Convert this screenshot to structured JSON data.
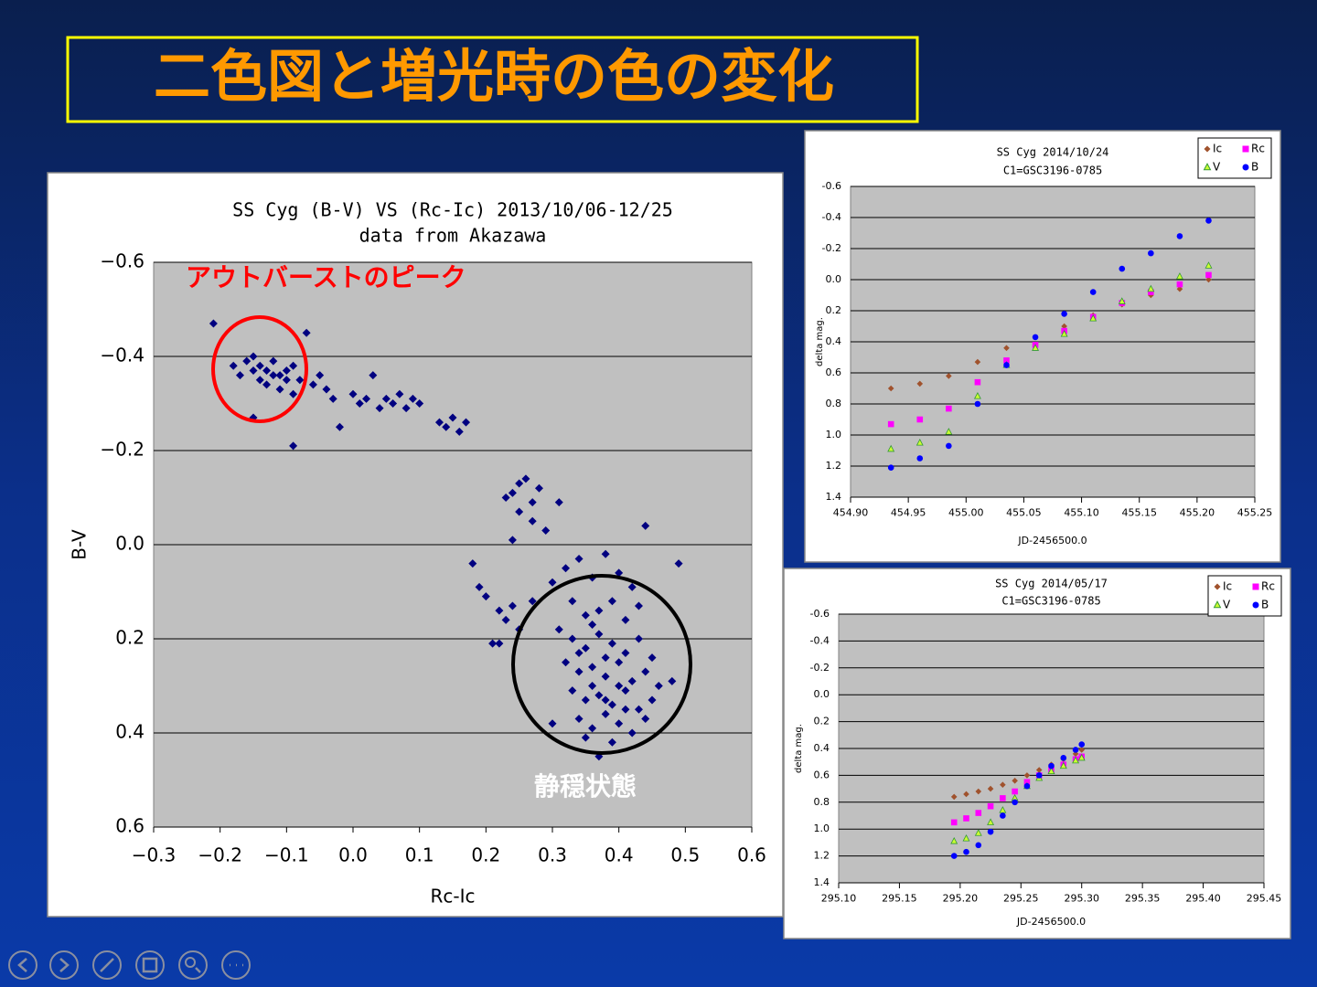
{
  "title": "二色図と増光時の色の変化",
  "chart_data": [
    {
      "type": "scatter",
      "title": "SS Cyg (B-V) VS (Rc-Ic) 2013/10/06-12/25",
      "subtitle": "data from Akazawa",
      "x_label": "Rc-Ic",
      "y_label": "B-V",
      "color": "#000080",
      "marker": "diamond",
      "plot_bg": "#c0c0c0",
      "grid": true,
      "y_reversed": true,
      "xlim": [
        -0.3,
        0.6
      ],
      "xticks": [
        {
          "value": -0.3,
          "label": "−0.3"
        },
        {
          "value": -0.2,
          "label": "−0.2"
        },
        {
          "value": -0.1,
          "label": "−0.1"
        },
        {
          "value": 0,
          "label": "0.0"
        },
        0.1,
        0.2,
        0.3,
        0.4,
        0.5,
        0.6
      ],
      "ylim": [
        -0.6,
        0.6
      ],
      "yticks": [
        {
          "value": -0.6,
          "label": "−0.6"
        },
        {
          "value": -0.4,
          "label": "−0.4"
        },
        {
          "value": -0.2,
          "label": "−0.2"
        },
        {
          "value": 0,
          "label": "0.0"
        },
        0.2,
        0.4,
        0.6
      ],
      "annotations": [
        {
          "text": "アウトバーストのピーク",
          "color": "#ff0000"
        },
        {
          "text": "静穏状態",
          "color": "#ffffff"
        }
      ],
      "x": [
        -0.21,
        -0.18,
        -0.17,
        -0.16,
        -0.15,
        -0.15,
        -0.14,
        -0.14,
        -0.13,
        -0.13,
        -0.12,
        -0.12,
        -0.11,
        -0.11,
        -0.1,
        -0.1,
        -0.09,
        -0.09,
        -0.15,
        -0.09,
        -0.08,
        -0.07,
        -0.06,
        -0.05,
        -0.04,
        -0.03,
        -0.02,
        0,
        0.01,
        0.02,
        0.03,
        0.04,
        0.05,
        0.06,
        0.07,
        0.08,
        0.09,
        0.1,
        0.13,
        0.14,
        0.15,
        0.16,
        0.17,
        0.24,
        0.25,
        0.26,
        0.27,
        0.28,
        0.25,
        0.27,
        0.29,
        0.23,
        0.31,
        0.24,
        0.18,
        0.19,
        0.2,
        0.22,
        0.23,
        0.24,
        0.21,
        0.22,
        0.25,
        0.27,
        0.3,
        0.32,
        0.34,
        0.36,
        0.38,
        0.4,
        0.42,
        0.44,
        0.49,
        0.33,
        0.35,
        0.37,
        0.39,
        0.41,
        0.43,
        0.31,
        0.33,
        0.35,
        0.37,
        0.39,
        0.41,
        0.43,
        0.45,
        0.32,
        0.34,
        0.36,
        0.38,
        0.4,
        0.42,
        0.44,
        0.46,
        0.48,
        0.33,
        0.35,
        0.37,
        0.39,
        0.41,
        0.43,
        0.45,
        0.34,
        0.36,
        0.38,
        0.4,
        0.42,
        0.44,
        0.3,
        0.37,
        0.39,
        0.35,
        0.41,
        0.36,
        0.38,
        0.4,
        0.34,
        0.36,
        0.38
      ],
      "values": [
        -0.47,
        -0.38,
        -0.36,
        -0.39,
        -0.4,
        -0.37,
        -0.38,
        -0.35,
        -0.37,
        -0.34,
        -0.36,
        -0.39,
        -0.36,
        -0.33,
        -0.37,
        -0.35,
        -0.38,
        -0.32,
        -0.27,
        -0.21,
        -0.35,
        -0.45,
        -0.34,
        -0.36,
        -0.33,
        -0.31,
        -0.25,
        -0.32,
        -0.3,
        -0.31,
        -0.36,
        -0.29,
        -0.31,
        -0.3,
        -0.32,
        -0.29,
        -0.31,
        -0.3,
        -0.26,
        -0.25,
        -0.27,
        -0.24,
        -0.26,
        -0.11,
        -0.13,
        -0.14,
        -0.09,
        -0.12,
        -0.07,
        -0.05,
        -0.03,
        -0.1,
        -0.09,
        -0.01,
        0.04,
        0.09,
        0.11,
        0.14,
        0.16,
        0.13,
        0.21,
        0.21,
        0.18,
        0.12,
        0.08,
        0.05,
        0.03,
        0.07,
        0.02,
        0.06,
        0.09,
        -0.04,
        0.04,
        0.12,
        0.15,
        0.14,
        0.12,
        0.16,
        0.13,
        0.18,
        0.2,
        0.22,
        0.19,
        0.21,
        0.23,
        0.2,
        0.24,
        0.25,
        0.27,
        0.26,
        0.28,
        0.25,
        0.29,
        0.27,
        0.3,
        0.29,
        0.31,
        0.33,
        0.32,
        0.34,
        0.31,
        0.35,
        0.33,
        0.37,
        0.39,
        0.36,
        0.38,
        0.4,
        0.37,
        0.38,
        0.45,
        0.42,
        0.41,
        0.35,
        0.3,
        0.24,
        0.3,
        0.23,
        0.17,
        0.33
      ]
    },
    {
      "type": "scatter",
      "title": "SS Cyg 2014/10/24",
      "subtitle": "C1=GSC3196-0785",
      "x_label": "JD-2456500.0",
      "y_label": "delta mag.",
      "plot_bg": "#c0c0c0",
      "grid": true,
      "y_reversed": true,
      "legend": "upper right",
      "xlim": [
        454.9,
        455.25
      ],
      "xticks": [
        {
          "value": 454.9,
          "label": "454.90"
        },
        454.95,
        {
          "value": 455,
          "label": "455.00"
        },
        455.05,
        {
          "value": 455.1,
          "label": "455.10"
        },
        455.15,
        {
          "value": 455.2,
          "label": "455.20"
        },
        455.25
      ],
      "ylim": [
        -0.6,
        1.4
      ],
      "yticks": [
        -0.6,
        -0.4,
        -0.2,
        {
          "value": 0,
          "label": "0.0"
        },
        0.2,
        0.4,
        0.6,
        0.8,
        {
          "value": 1,
          "label": "1.0"
        },
        1.2,
        1.4
      ],
      "x": [
        454.935,
        454.96,
        454.985,
        455.01,
        455.035,
        455.06,
        455.085,
        455.11,
        455.135,
        455.16,
        455.185,
        455.21
      ],
      "series": [
        {
          "name": "Ic",
          "color": "#a0522d",
          "marker": "diamond",
          "values": [
            0.7,
            0.67,
            0.62,
            0.53,
            0.44,
            0.37,
            0.3,
            0.23,
            0.16,
            0.1,
            0.06,
            0
          ]
        },
        {
          "name": "Rc",
          "color": "#ff00ff",
          "marker": "square",
          "values": [
            0.93,
            0.9,
            0.83,
            0.66,
            0.52,
            0.42,
            0.33,
            0.24,
            0.15,
            0.08,
            0.03,
            -0.03
          ]
        },
        {
          "name": "V",
          "color": "#ccff33",
          "marker": "triangle",
          "values": [
            1.09,
            1.05,
            0.98,
            0.75,
            0.55,
            0.44,
            0.35,
            0.25,
            0.14,
            0.06,
            -0.02,
            -0.09
          ]
        },
        {
          "name": "B",
          "color": "#0000ff",
          "marker": "circle",
          "values": [
            1.21,
            1.15,
            1.07,
            0.8,
            0.55,
            0.37,
            0.22,
            0.08,
            -0.07,
            -0.17,
            -0.28,
            -0.38
          ]
        }
      ]
    },
    {
      "type": "scatter",
      "title": "SS Cyg 2014/05/17",
      "subtitle": "C1=GSC3196-0785",
      "x_label": "JD-2456500.0",
      "y_label": "delta mag.",
      "plot_bg": "#c0c0c0",
      "grid": true,
      "y_reversed": true,
      "legend": "upper right",
      "xlim": [
        295.1,
        295.45
      ],
      "xticks": [
        {
          "value": 295.1,
          "label": "295.10"
        },
        295.15,
        {
          "value": 295.2,
          "label": "295.20"
        },
        295.25,
        {
          "value": 295.3,
          "label": "295.30"
        },
        295.35,
        {
          "value": 295.4,
          "label": "295.40"
        },
        295.45
      ],
      "ylim": [
        -0.6,
        1.4
      ],
      "yticks": [
        -0.6,
        -0.4,
        -0.2,
        {
          "value": 0,
          "label": "0.0"
        },
        0.2,
        0.4,
        0.6,
        0.8,
        {
          "value": 1,
          "label": "1.0"
        },
        1.2,
        1.4
      ],
      "x": [
        295.195,
        295.205,
        295.215,
        295.225,
        295.235,
        295.245,
        295.255,
        295.265,
        295.275,
        295.285,
        295.295,
        295.3
      ],
      "series": [
        {
          "name": "Ic",
          "color": "#a0522d",
          "marker": "diamond",
          "values": [
            0.76,
            0.74,
            0.72,
            0.7,
            0.67,
            0.64,
            0.6,
            0.56,
            0.52,
            0.48,
            0.44,
            0.41
          ]
        },
        {
          "name": "Rc",
          "color": "#ff00ff",
          "marker": "square",
          "values": [
            0.95,
            0.92,
            0.88,
            0.83,
            0.77,
            0.72,
            0.65,
            0.6,
            0.56,
            0.52,
            0.48,
            0.46
          ]
        },
        {
          "name": "V",
          "color": "#ccff33",
          "marker": "triangle",
          "values": [
            1.09,
            1.07,
            1.03,
            0.95,
            0.86,
            0.77,
            0.68,
            0.62,
            0.57,
            0.53,
            0.49,
            0.47
          ]
        },
        {
          "name": "B",
          "color": "#0000ff",
          "marker": "circle",
          "values": [
            1.2,
            1.17,
            1.12,
            1.02,
            0.9,
            0.8,
            0.68,
            0.6,
            0.53,
            0.47,
            0.41,
            0.37
          ]
        }
      ]
    }
  ]
}
